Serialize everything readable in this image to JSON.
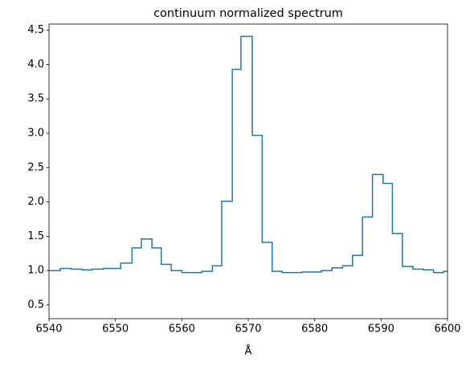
{
  "chart_data": {
    "type": "step",
    "title": "continuum normalized spectrum",
    "xlabel": "Å",
    "color": "#1f77b4",
    "x": [
      6540.0,
      6541.7,
      6543.3,
      6545.0,
      6546.5,
      6548.2,
      6550.8,
      6552.5,
      6553.9,
      6555.5,
      6556.9,
      6558.4,
      6560.0,
      6563.0,
      6564.6,
      6566.0,
      6567.6,
      6568.9,
      6570.6,
      6572.1,
      6573.6,
      6575.1,
      6578.1,
      6581.0,
      6582.6,
      6584.2,
      6585.7,
      6587.2,
      6588.7,
      6590.3,
      6591.7,
      6593.2,
      6594.8,
      6596.4,
      6597.9,
      6599.4
    ],
    "values": [
      1.0,
      1.03,
      1.02,
      1.01,
      1.02,
      1.03,
      1.11,
      1.33,
      1.46,
      1.33,
      1.09,
      1.0,
      0.97,
      0.99,
      1.07,
      2.01,
      3.93,
      4.41,
      2.97,
      1.41,
      0.99,
      0.97,
      0.98,
      1.0,
      1.04,
      1.07,
      1.22,
      1.78,
      2.4,
      2.27,
      1.54,
      1.06,
      1.02,
      1.01,
      0.97,
      0.99
    ],
    "xlim": [
      6540,
      6600
    ],
    "xticks": [
      6540,
      6550,
      6560,
      6570,
      6580,
      6590,
      6600
    ],
    "ylim": [
      0.3,
      4.59
    ],
    "yticks": [
      0.5,
      {
        "value": 1.0,
        "label": "1.0"
      },
      1.5,
      {
        "value": 2.0,
        "label": "2.0"
      },
      2.5,
      {
        "value": 3.0,
        "label": "3.0"
      },
      3.5,
      {
        "value": 4.0,
        "label": "4.0"
      },
      4.5
    ]
  }
}
